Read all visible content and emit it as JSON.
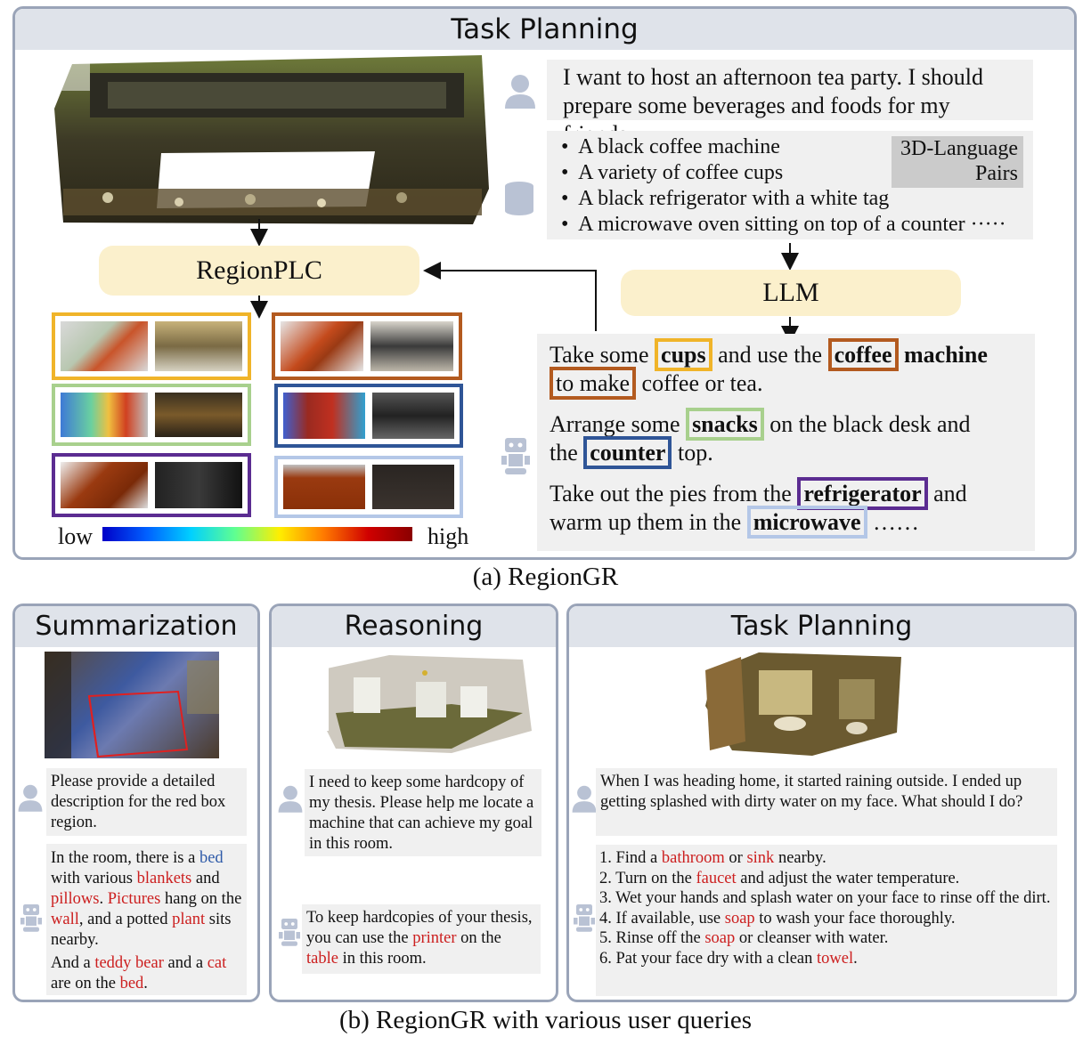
{
  "top_panel": {
    "title": "Task Planning",
    "user_query": "I want to host an afternoon tea party. I should prepare some beverages and foods for my friends.",
    "pairs_label_line1": "3D-Language",
    "pairs_label_line2": "Pairs",
    "pairs": [
      "A black coffee machine",
      "A variety of coffee cups",
      "A black refrigerator with a white tag",
      "A microwave oven sitting on top of a counter ·····"
    ],
    "regionplc_label": "RegionPLC",
    "llm_label": "LLM",
    "legend_low": "low",
    "legend_high": "high",
    "response": {
      "p1_a": "Take some",
      "p1_cups": "cups",
      "p1_b": "and use the",
      "p1_coffee": "coffee",
      "p1_c": "machine",
      "p1_tomake": "to make",
      "p1_d": "coffee or tea.",
      "p2_a": "Arrange some",
      "p2_snacks": "snacks",
      "p2_b": "on the black desk and",
      "p2_c": "the",
      "p2_counter": "counter",
      "p2_d": "top.",
      "p3_a": "Take out the pies from the",
      "p3_fridge": "refrigerator",
      "p3_b": "and",
      "p3_c": "warm up them in the",
      "p3_micro": "microwave",
      "p3_d": "……"
    },
    "colors": {
      "cups": "#f0b429",
      "coffee": "#b35a1f",
      "snacks": "#a8d08d",
      "counter": "#2f5597",
      "fridge": "#5b2c91",
      "microwave": "#b4c7e7"
    }
  },
  "caption_a": "(a) RegionGR",
  "summarization": {
    "title": "Summarization",
    "query": "Please provide a detailed description for the red box region.",
    "answer": {
      "a1": "In the room, there is a",
      "bed": "bed",
      "a2": "with various",
      "blankets": "blankets",
      "a3": "and",
      "pillows": "pillows",
      "a4": ".",
      "pictures": "Pictures",
      "a5": "hang on the",
      "wall": "wall",
      "a6": ", and a potted",
      "plant": "plant",
      "a7": "sits nearby.",
      "b1": "And a",
      "teddy": "teddy bear",
      "b2": "and a",
      "cat": "cat",
      "b3": "are on the",
      "bed2": "bed",
      "b4": "."
    }
  },
  "reasoning": {
    "title": "Reasoning",
    "query": "I need to keep some hardcopy of my thesis. Please help me locate a machine that can achieve my goal in this room.",
    "answer": {
      "a1": "To keep hardcopies of your thesis, you can use the",
      "printer": "printer",
      "a2": "on the",
      "table": "table",
      "a3": "in this room."
    }
  },
  "planning": {
    "title": "Task Planning",
    "query": "When I was heading home, it started raining outside. I ended up getting splashed with dirty water on my face. What should I do?",
    "steps": {
      "s1a": "1. Find a",
      "bathroom": "bathroom",
      "s1b": "or",
      "sink": "sink",
      "s1c": "nearby.",
      "s2a": "2. Turn on the",
      "faucet": "faucet",
      "s2b": "and adjust the water temperature.",
      "s3": "3. Wet your hands and splash water on your face to rinse off the dirt.",
      "s4a": "4. If available, use",
      "soap": "soap",
      "s4b": "to wash your face thoroughly.",
      "s5a": "5. Rinse off the",
      "soap2": "soap",
      "s5b": "or cleanser with water.",
      "s6a": "6. Pat your face dry with a clean",
      "towel": "towel",
      "s6b": "."
    }
  },
  "caption_b": "(b) RegionGR with various user queries"
}
